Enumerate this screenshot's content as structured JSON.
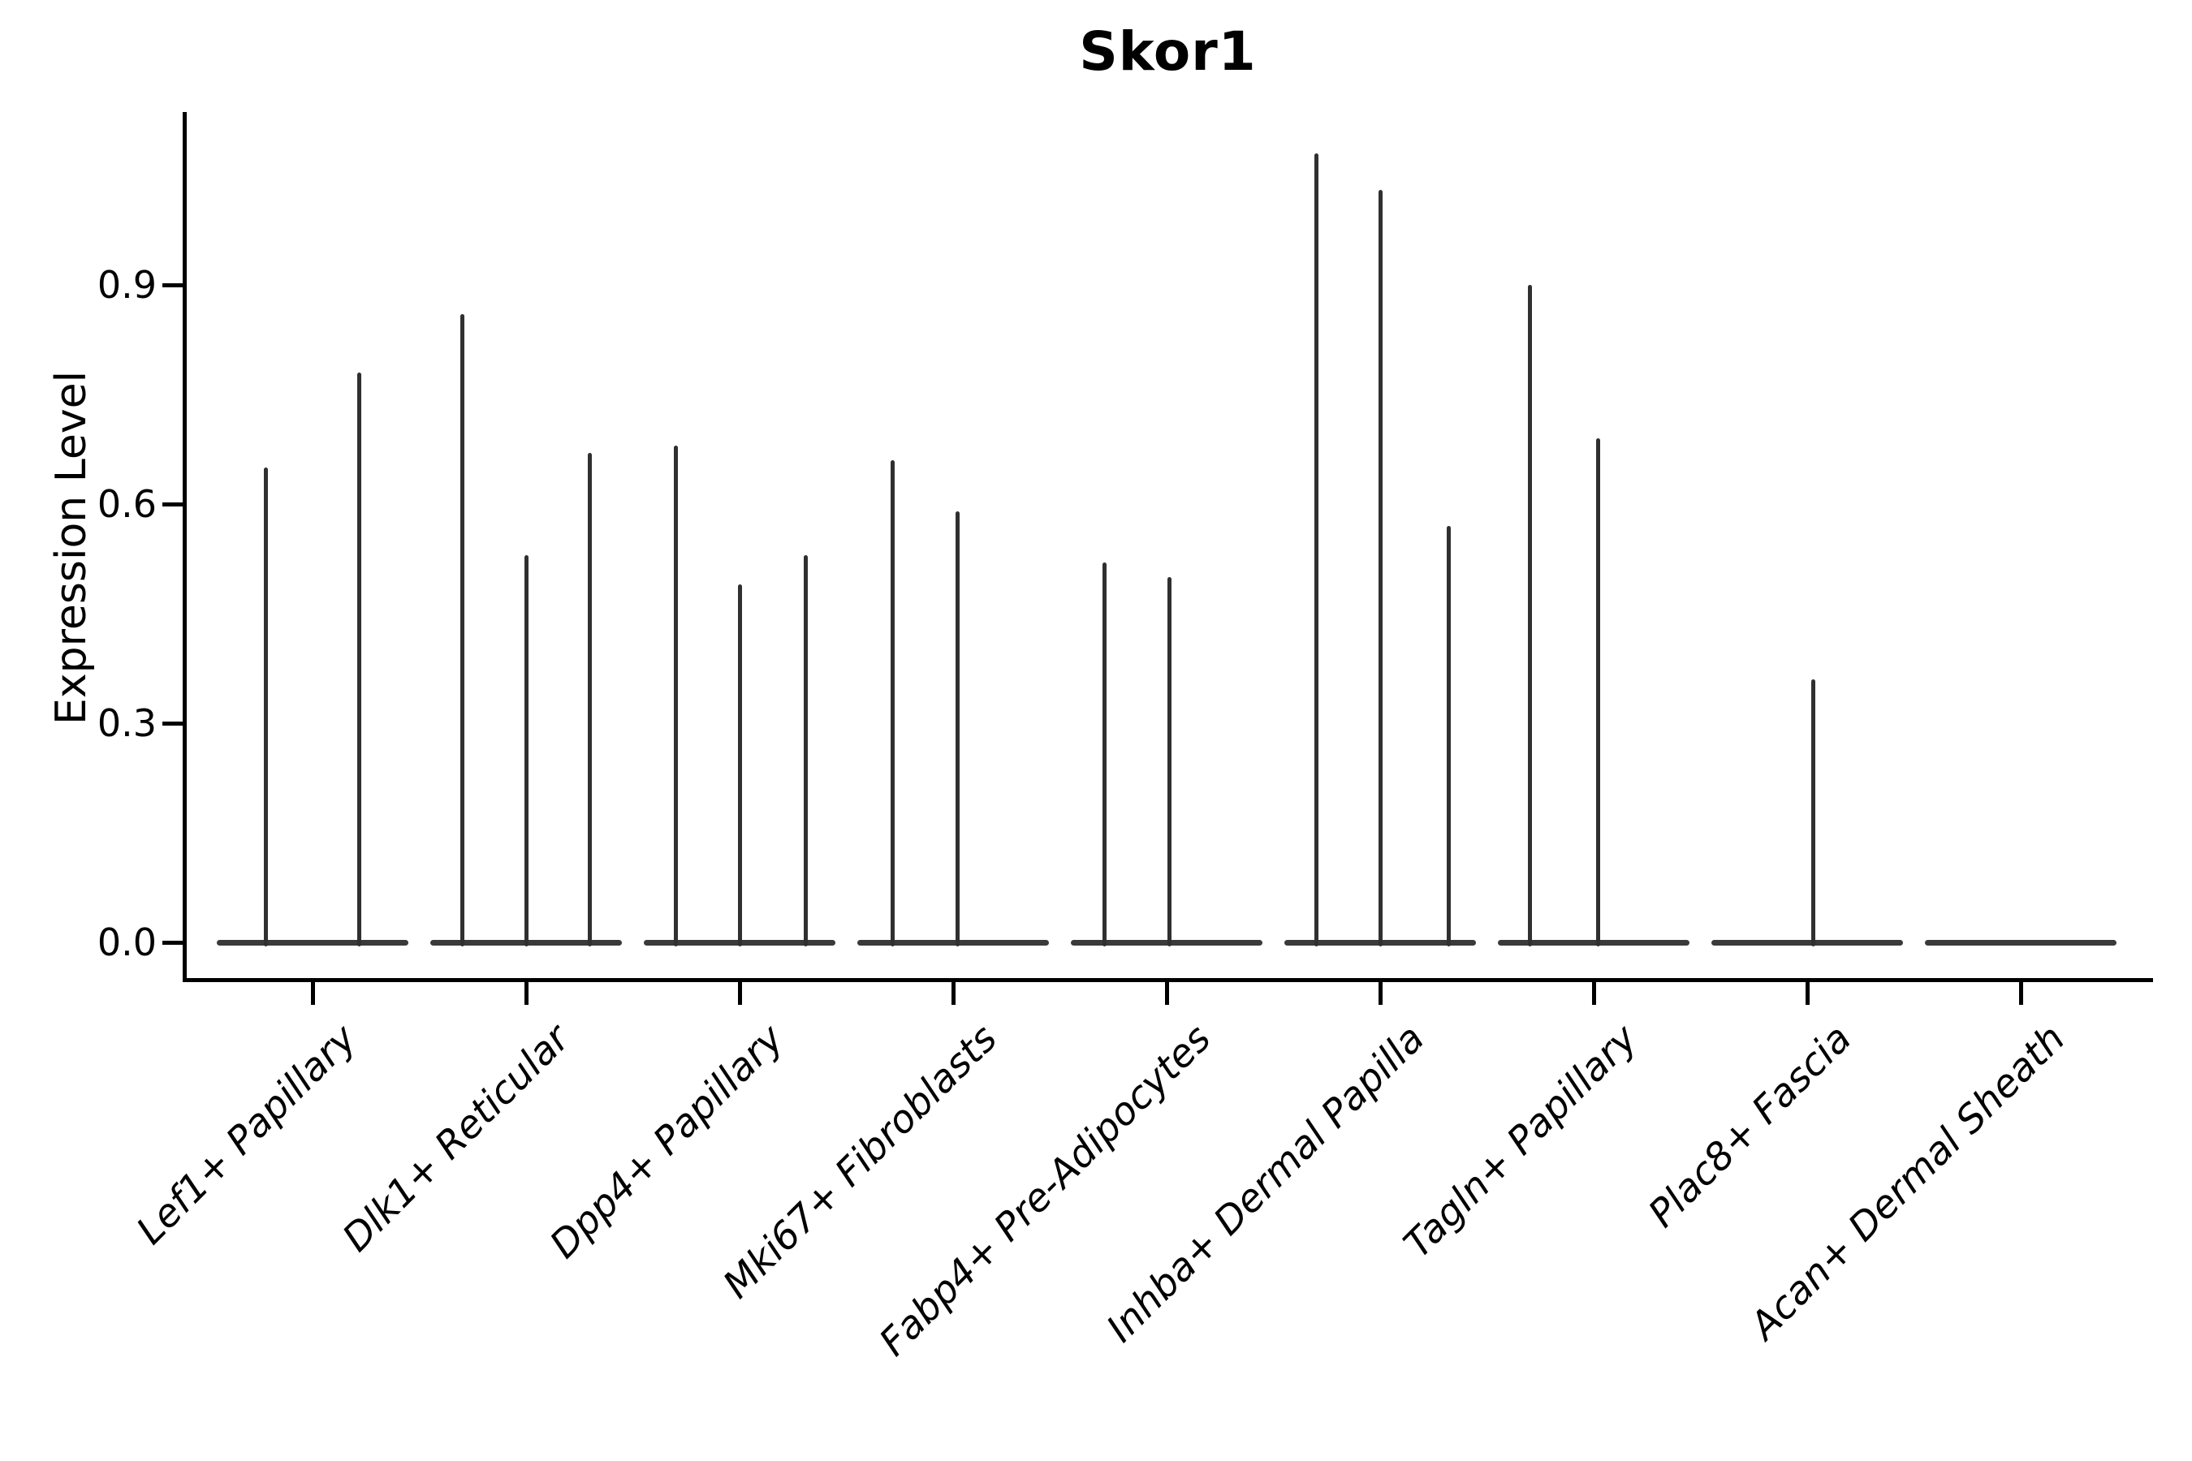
{
  "chart_data": {
    "type": "violin",
    "title": "Skor1",
    "ylabel": "Expression Level",
    "xlabel": "",
    "grid": false,
    "legend": null,
    "background": "#ffffff",
    "axis_color": "#000000",
    "violin_color": "#303030",
    "ylim": [
      -0.055,
      1.135
    ],
    "yticks": [
      {
        "value": 0.0,
        "label": "0.0"
      },
      {
        "value": 0.3,
        "label": "0.3"
      },
      {
        "value": 0.6,
        "label": "0.6"
      },
      {
        "value": 0.9,
        "label": "0.9"
      }
    ],
    "categories": [
      "Lef1+ Papillary",
      "Dlk1+ Reticular",
      "Dpp4+ Papillary",
      "Mki67+ Fibroblasts",
      "Fabp4+ Pre-Adipocytes",
      "Inhba+ Dermal Papilla",
      "Tagln+ Papillary",
      "Plac8+ Fascia",
      "Acan+ Dermal Sheath"
    ],
    "baseline_value": 0.0,
    "baseline_halfwidth": 0.45,
    "groups": [
      {
        "category": "Lef1+ Papillary",
        "violins": [
          {
            "offset": -0.22,
            "max": 0.65
          },
          {
            "offset": 0.22,
            "max": 0.78
          }
        ]
      },
      {
        "category": "Dlk1+ Reticular",
        "violins": [
          {
            "offset": -0.3,
            "max": 0.86
          },
          {
            "offset": 0.0,
            "max": 0.53
          },
          {
            "offset": 0.3,
            "max": 0.67
          }
        ]
      },
      {
        "category": "Dpp4+ Papillary",
        "violins": [
          {
            "offset": -0.3,
            "max": 0.68
          },
          {
            "offset": 0.0,
            "max": 0.49
          },
          {
            "offset": 0.31,
            "max": 0.53
          }
        ]
      },
      {
        "category": "Mki67+ Fibroblasts",
        "violins": [
          {
            "offset": -0.285,
            "max": 0.66
          },
          {
            "offset": 0.02,
            "max": 0.59
          }
        ]
      },
      {
        "category": "Fabp4+ Pre-Adipocytes",
        "violins": [
          {
            "offset": -0.29,
            "max": 0.52
          },
          {
            "offset": 0.015,
            "max": 0.5
          }
        ]
      },
      {
        "category": "Inhba+ Dermal Papilla",
        "violins": [
          {
            "offset": -0.3,
            "max": 1.08
          },
          {
            "offset": 0.0,
            "max": 1.03
          },
          {
            "offset": 0.32,
            "max": 0.57
          }
        ]
      },
      {
        "category": "Tagln+ Papillary",
        "violins": [
          {
            "offset": -0.3,
            "max": 0.9
          },
          {
            "offset": 0.02,
            "max": 0.69
          }
        ]
      },
      {
        "category": "Plac8+ Fascia",
        "violins": [
          {
            "offset": 0.03,
            "max": 0.36
          }
        ]
      },
      {
        "category": "Acan+ Dermal Sheath",
        "violins": []
      }
    ]
  }
}
